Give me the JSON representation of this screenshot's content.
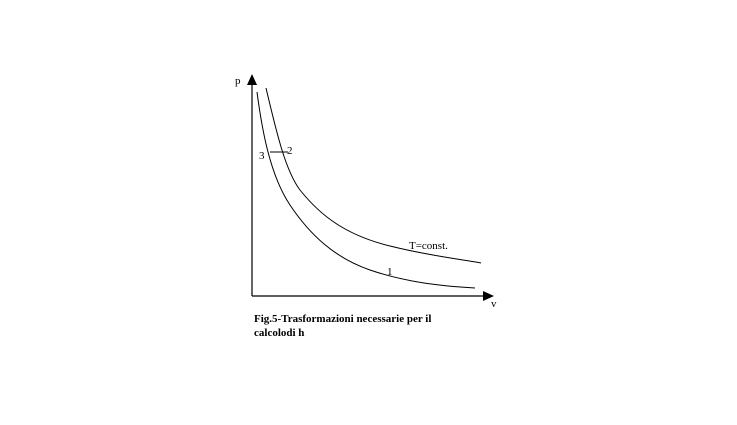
{
  "axes": {
    "y_label": "p",
    "x_label": "v"
  },
  "points": {
    "p3": "3",
    "p2": "2",
    "p1": "1"
  },
  "curve_label": "T=const.",
  "caption": {
    "line1": "Fig.5-Trasformazioni necessarie per il",
    "line2": "calcolodi h"
  }
}
